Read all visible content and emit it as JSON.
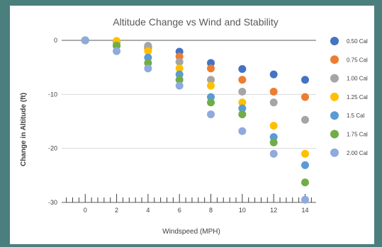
{
  "chart_data": {
    "type": "scatter",
    "title": "Altitude Change vs Wind and Stability",
    "xlabel": "Windspeed (MPH)",
    "ylabel": "Change in Altitude (ft)",
    "xlim": [
      -1.5,
      14.7
    ],
    "ylim": [
      -30,
      0
    ],
    "x_ticks": [
      "0",
      "2",
      "4",
      "6",
      "8",
      "10",
      "12",
      "14"
    ],
    "y_ticks": [
      "0",
      "-10",
      "-20",
      "-30"
    ],
    "grid": "horizontal",
    "legend_position": "right",
    "x": [
      0,
      2,
      4,
      6,
      8,
      10,
      12,
      14
    ],
    "series": [
      {
        "name": "0.50 Cal",
        "color": "#4472c4",
        "values": [
          0,
          -0.2,
          -1.2,
          -2.1,
          -4.2,
          -5.3,
          -6.3,
          -7.3
        ]
      },
      {
        "name": "0.75 Cal",
        "color": "#ed7d31",
        "values": [
          0,
          -0.3,
          -1.5,
          -3.0,
          -5.2,
          -7.3,
          -9.5,
          -10.5
        ]
      },
      {
        "name": "1.00 Cal",
        "color": "#a5a5a5",
        "values": [
          0,
          -0.4,
          -1.0,
          -4.0,
          -7.3,
          -9.5,
          -11.5,
          -14.7
        ]
      },
      {
        "name": "1.25 Cal",
        "color": "#ffc000",
        "values": [
          0,
          -0.1,
          -2.0,
          -5.2,
          -8.4,
          -11.5,
          -15.8,
          -21.0
        ]
      },
      {
        "name": "1.5 Cal",
        "color": "#5b9bd5",
        "values": [
          0,
          -1.0,
          -3.2,
          -6.3,
          -10.5,
          -12.6,
          -17.9,
          -23.1
        ]
      },
      {
        "name": "1.75 Cal",
        "color": "#70ad47",
        "values": [
          0,
          -1.0,
          -4.2,
          -7.3,
          -11.5,
          -13.7,
          -18.9,
          -26.3
        ]
      },
      {
        "name": "2.00 Cal",
        "color": "#8faadc",
        "values": [
          0,
          -2.0,
          -5.2,
          -8.4,
          -13.7,
          -16.8,
          -21.0,
          -29.5
        ]
      }
    ]
  }
}
